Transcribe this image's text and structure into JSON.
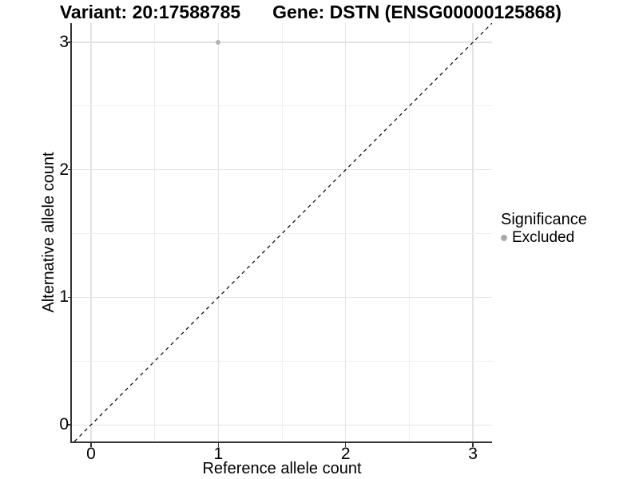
{
  "chart_data": {
    "type": "scatter",
    "title_left": "Variant: 20:17588785",
    "title_right": "Gene: DSTN (ENSG00000125868)",
    "xlabel": "Reference allele count",
    "ylabel": "Alternative allele count",
    "xlim": [
      -0.15,
      3.15
    ],
    "ylim": [
      -0.13,
      3.15
    ],
    "x_major_ticks": [
      0,
      1,
      2,
      3
    ],
    "y_major_ticks": [
      0,
      1,
      2,
      3
    ],
    "x_tick_labels": [
      "0",
      "1",
      "2",
      "3"
    ],
    "y_tick_labels": [
      "0",
      "1",
      "2",
      "3"
    ],
    "x_minor_gridlines": [
      0.5,
      1.5,
      2.5
    ],
    "y_minor_gridlines": [
      0.5,
      1.5,
      2.5
    ],
    "grid": "major and minor, light gray on white",
    "points": [
      {
        "x": 1,
        "y": 3,
        "series": "Excluded"
      }
    ],
    "identity_line": {
      "slope": 1,
      "intercept": 0,
      "style": "dashed",
      "color": "#000000"
    },
    "legend": {
      "title": "Significance",
      "position": "right",
      "items": [
        {
          "label": "Excluded",
          "color": "#aaaaaa"
        }
      ]
    },
    "colors": {
      "point": "#b3b3b3",
      "grid_major": "#e3e3e3",
      "grid_minor": "#efefef",
      "axis_line": "#333333",
      "text": "#000000",
      "background": "#ffffff"
    }
  }
}
